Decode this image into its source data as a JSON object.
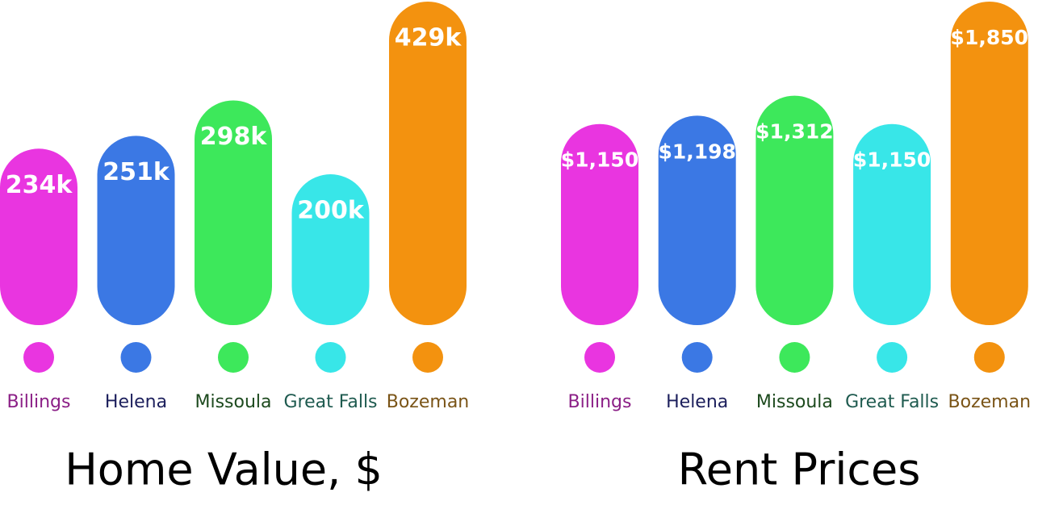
{
  "chart_data": [
    {
      "type": "bar",
      "title": "Home Value, $",
      "categories": [
        "Billings",
        "Helena",
        "Missoula",
        "Great Falls",
        "Bozeman"
      ],
      "values": [
        234000,
        251000,
        298000,
        200000,
        429000
      ],
      "value_labels": [
        "234k",
        "251k",
        "298k",
        "200k",
        "429k"
      ],
      "colors": [
        "#e935e0",
        "#3b78e4",
        "#3de85b",
        "#38e6e8",
        "#f3920f"
      ],
      "label_colors": [
        "#8b1f86",
        "#1c1f5c",
        "#1d4a1e",
        "#1e5a4f",
        "#7a5417"
      ]
    },
    {
      "type": "bar",
      "title": "Rent Prices",
      "categories": [
        "Billings",
        "Helena",
        "Missoula",
        "Great Falls",
        "Bozeman"
      ],
      "values": [
        1150,
        1198,
        1312,
        1150,
        1850
      ],
      "value_labels": [
        "$1,150",
        "$1,198",
        "$1,312",
        "$1,150",
        "$1,850"
      ],
      "colors": [
        "#e935e0",
        "#3b78e4",
        "#3de85b",
        "#38e6e8",
        "#f3920f"
      ],
      "label_colors": [
        "#8b1f86",
        "#1c1f5c",
        "#1d4a1e",
        "#1e5a4f",
        "#7a5417"
      ]
    }
  ]
}
